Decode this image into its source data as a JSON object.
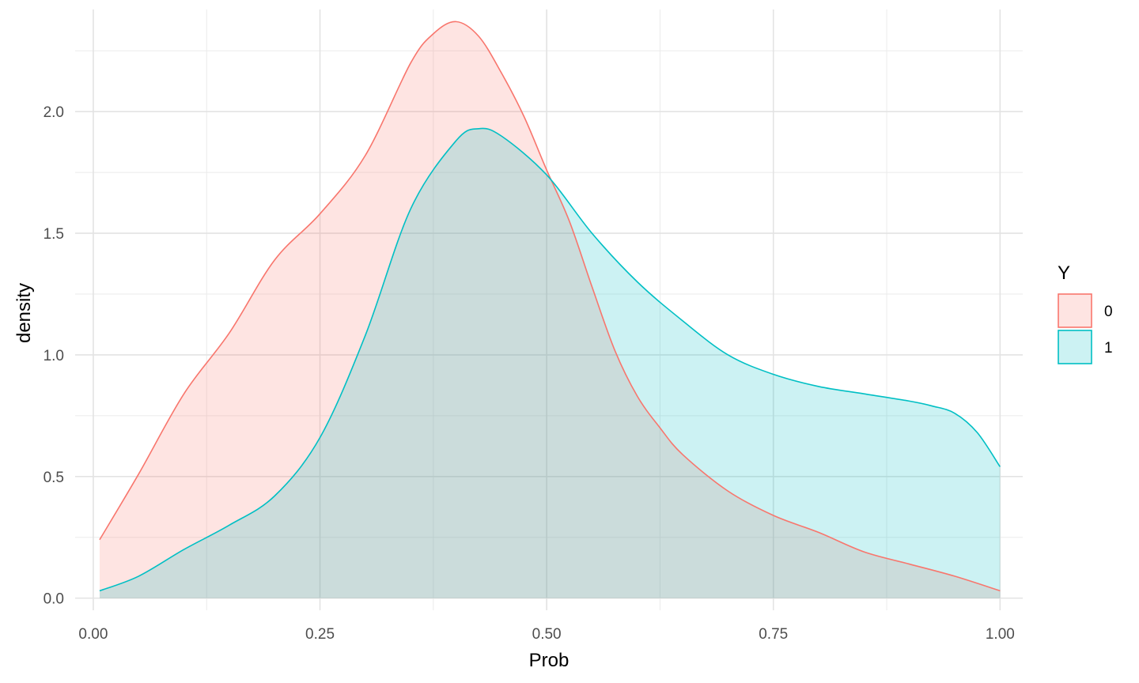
{
  "chart_data": {
    "type": "area",
    "subtype": "density",
    "title": "",
    "xlabel": "Prob",
    "ylabel": "density",
    "xlim": [
      -0.02,
      1.025
    ],
    "ylim": [
      -0.05,
      2.42
    ],
    "x_ticks": [
      0.0,
      0.25,
      0.5,
      0.75,
      1.0
    ],
    "x_tick_labels": [
      "0.00",
      "0.25",
      "0.50",
      "0.75",
      "1.00"
    ],
    "y_ticks": [
      0.0,
      0.5,
      1.0,
      1.5,
      2.0
    ],
    "y_tick_labels": [
      "0.0",
      "0.5",
      "1.0",
      "1.5",
      "2.0"
    ],
    "grid": true,
    "legend": {
      "title": "Y",
      "position": "right",
      "entries": [
        "0",
        "1"
      ]
    },
    "series": [
      {
        "name": "0",
        "line_color": "#F8766D",
        "fill_color": "#F8766D",
        "fill_opacity": 0.2,
        "x": [
          0.007,
          0.05,
          0.1,
          0.15,
          0.2,
          0.25,
          0.3,
          0.35,
          0.375,
          0.4,
          0.425,
          0.45,
          0.475,
          0.5,
          0.525,
          0.55,
          0.575,
          0.6,
          0.625,
          0.65,
          0.7,
          0.75,
          0.8,
          0.85,
          0.9,
          0.95,
          1.0
        ],
        "y": [
          0.24,
          0.51,
          0.84,
          1.09,
          1.39,
          1.58,
          1.82,
          2.2,
          2.32,
          2.37,
          2.31,
          2.16,
          1.98,
          1.76,
          1.55,
          1.28,
          1.02,
          0.83,
          0.7,
          0.59,
          0.44,
          0.34,
          0.27,
          0.19,
          0.14,
          0.09,
          0.03
        ]
      },
      {
        "name": "1",
        "line_color": "#00BFC4",
        "fill_color": "#00BFC4",
        "fill_opacity": 0.2,
        "x": [
          0.007,
          0.05,
          0.1,
          0.15,
          0.2,
          0.25,
          0.3,
          0.35,
          0.4,
          0.425,
          0.45,
          0.5,
          0.55,
          0.6,
          0.65,
          0.7,
          0.75,
          0.8,
          0.85,
          0.9,
          0.925,
          0.95,
          0.975,
          1.0
        ],
        "y": [
          0.03,
          0.09,
          0.2,
          0.3,
          0.42,
          0.66,
          1.08,
          1.6,
          1.88,
          1.93,
          1.9,
          1.74,
          1.5,
          1.3,
          1.14,
          1.0,
          0.92,
          0.87,
          0.84,
          0.81,
          0.79,
          0.76,
          0.68,
          0.54
        ]
      }
    ]
  }
}
